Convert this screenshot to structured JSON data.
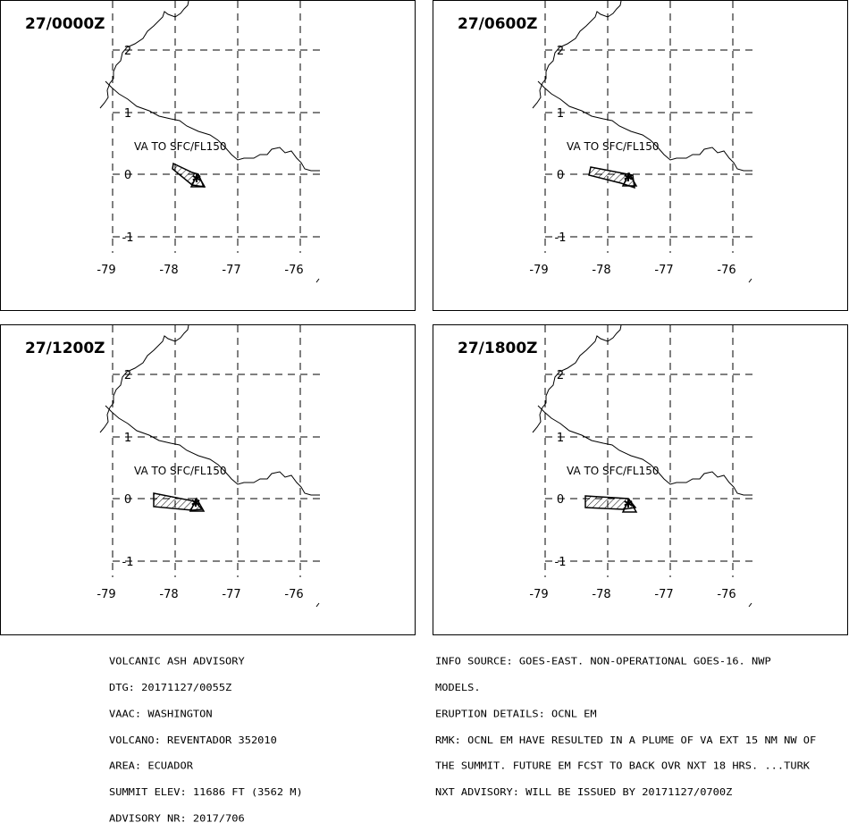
{
  "panels": [
    {
      "time_label": "27/0000Z",
      "annotation": "VA TO SFC/FL150",
      "plume": "p0"
    },
    {
      "time_label": "27/0600Z",
      "annotation": "VA TO SFC/FL150",
      "plume": "p1"
    },
    {
      "time_label": "27/1200Z",
      "annotation": "VA TO SFC/FL150",
      "plume": "p2"
    },
    {
      "time_label": "27/1800Z",
      "annotation": "VA TO SFC/FL150",
      "plume": "p3"
    }
  ],
  "map": {
    "lon_ticks": [
      "-79",
      "-78",
      "-77",
      "-76"
    ],
    "lat_ticks": [
      "2",
      "1",
      "0",
      "-1"
    ]
  },
  "advisory_left": [
    "VOLCANIC ASH ADVISORY",
    "DTG: 20171127/0055Z",
    "VAAC: WASHINGTON",
    "VOLCANO: REVENTADOR 352010",
    "AREA: ECUADOR",
    "SUMMIT ELEV: 11686 FT (3562 M)",
    "ADVISORY NR: 2017/706"
  ],
  "advisory_right": [
    "INFO SOURCE: GOES-EAST. NON-OPERATIONAL GOES-16. NWP",
    "MODELS.",
    "ERUPTION DETAILS: OCNL EM",
    "RMK: OCNL EM HAVE RESULTED IN A PLUME OF VA EXT 15 NM NW OF",
    "THE SUMMIT. FUTURE EM FCST TO BACK OVR NXT 18 HRS. ...TURK",
    "NXT ADVISORY: WILL BE ISSUED BY 20171127/0700Z"
  ]
}
